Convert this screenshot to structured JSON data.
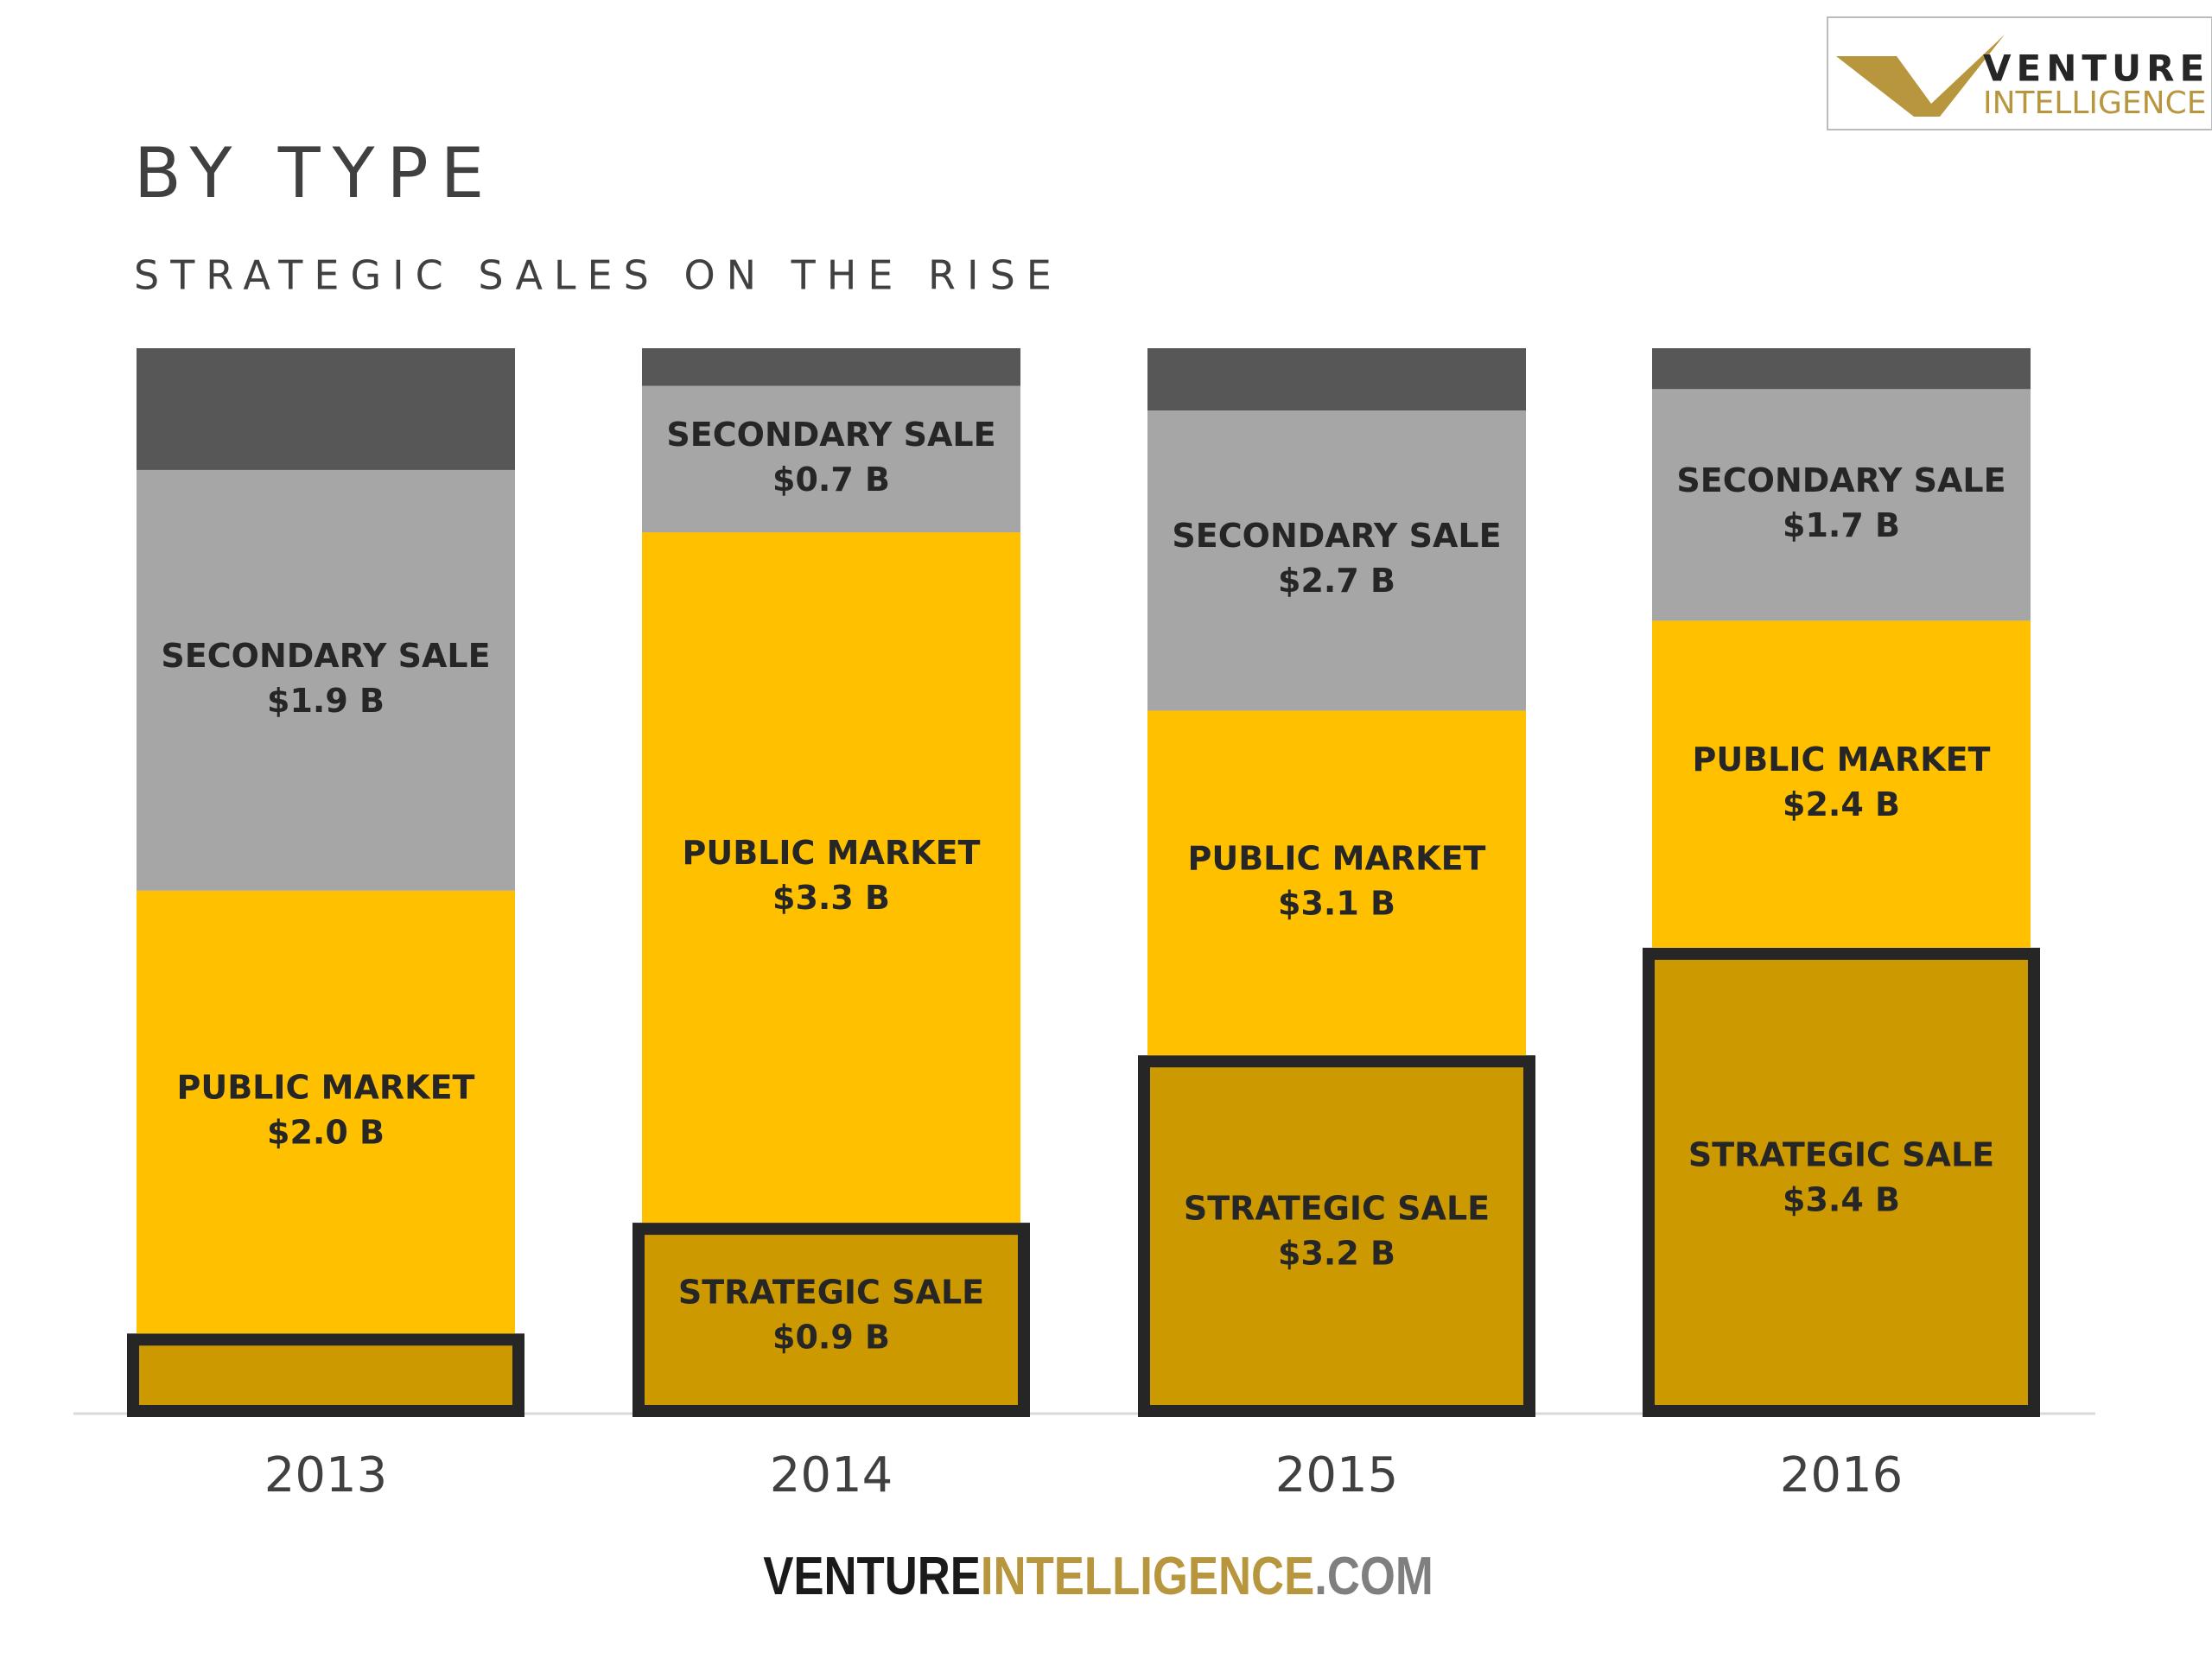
{
  "chart_data": {
    "type": "bar",
    "stacking": "percent",
    "title": "BY TYPE",
    "subtitle": "STRATEGIC SALES ON THE RISE",
    "categories": [
      "2013",
      "2014",
      "2015",
      "2016"
    ],
    "series": [
      {
        "name": "STRATEGIC SALE",
        "color": "#cc9900",
        "border": "#262626",
        "values": [
          0.35,
          0.9,
          3.2,
          3.4
        ],
        "value_labels": [
          null,
          "$0.9 B",
          "$3.2 B",
          "$3.4 B"
        ]
      },
      {
        "name": "PUBLIC MARKET",
        "color": "#ffc000",
        "values": [
          2.0,
          3.3,
          3.1,
          2.4
        ],
        "value_labels": [
          "$2.0 B",
          "$3.3 B",
          "$3.1 B",
          "$2.4 B"
        ]
      },
      {
        "name": "SECONDARY SALE",
        "color": "#a6a6a6",
        "values": [
          1.9,
          0.7,
          2.7,
          1.7
        ],
        "value_labels": [
          "$1.9 B",
          "$0.7 B",
          "$2.7 B",
          "$1.7 B"
        ]
      },
      {
        "color": "#575757",
        "values": [
          0.55,
          0.18,
          0.56,
          0.3
        ]
      }
    ]
  },
  "logo": {
    "line1": "VENTURE",
    "line2": "INTELLIGENCE"
  },
  "footer": {
    "part1": "VENTURE",
    "part2": "INTELLIGENCE",
    "part3": ".COM"
  }
}
